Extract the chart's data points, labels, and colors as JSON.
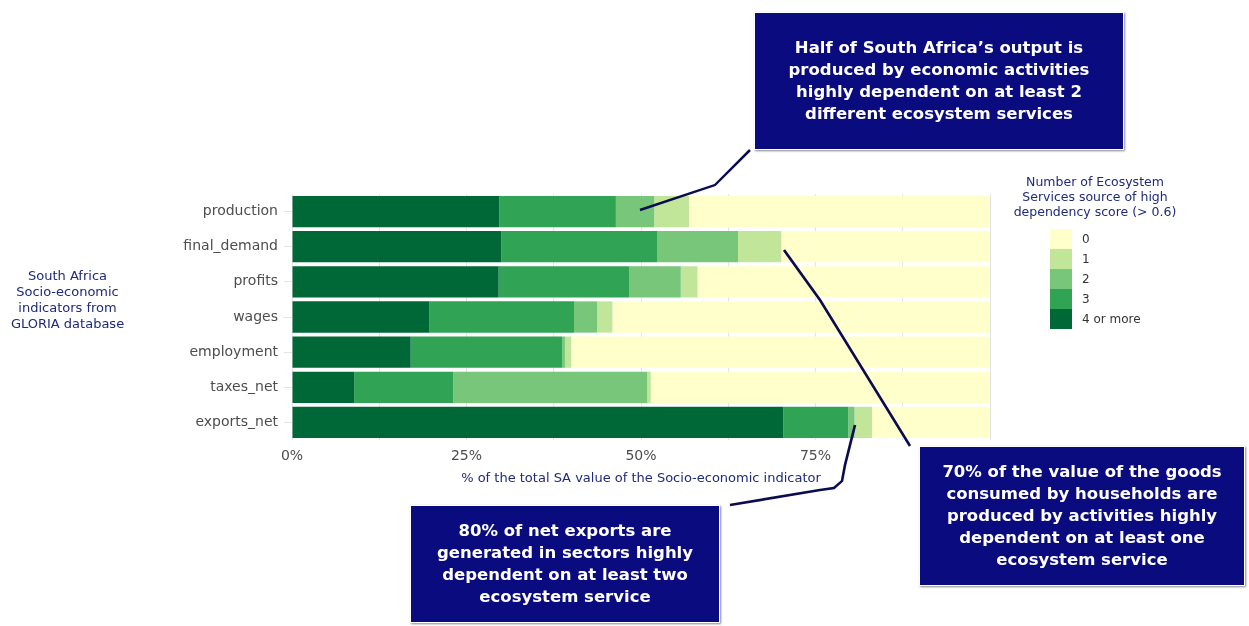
{
  "chart_data": {
    "type": "bar",
    "orientation": "horizontal",
    "stacked": true,
    "xlabel": "% of the total SA value of the Socio-economic indicator",
    "ylabel": "South Africa Socio-economic indicators from GLORIA database",
    "legend_title": "Number of Ecosystem Services source of high dependency score (> 0.6)",
    "categories": [
      "production",
      "final_demand",
      "profits",
      "wages",
      "employment",
      "taxes_net",
      "exports_net"
    ],
    "series": [
      {
        "name": "4 or more",
        "color": "#006837",
        "values": [
          29.7,
          30.0,
          29.6,
          19.7,
          17.0,
          8.9,
          70.4
        ]
      },
      {
        "name": "3",
        "color": "#31a354",
        "values": [
          16.7,
          22.3,
          18.7,
          20.7,
          21.7,
          14.2,
          9.3
        ]
      },
      {
        "name": "2",
        "color": "#78c679",
        "values": [
          5.5,
          11.6,
          7.4,
          3.3,
          0.4,
          27.8,
          0.9
        ]
      },
      {
        "name": "1",
        "color": "#c2e699",
        "values": [
          5.0,
          6.2,
          2.4,
          2.2,
          0.9,
          0.5,
          2.5
        ]
      },
      {
        "name": "0",
        "color": "#ffffcc",
        "values": [
          43.1,
          29.9,
          41.9,
          54.1,
          60.0,
          48.6,
          16.9
        ]
      }
    ],
    "xlim": [
      0,
      100
    ],
    "xticks": [
      {
        "value": 0,
        "label": "0%"
      },
      {
        "value": 25,
        "label": "25%"
      },
      {
        "value": 50,
        "label": "50%"
      },
      {
        "value": 75,
        "label": "75%"
      },
      {
        "value": 100,
        "label": null
      }
    ],
    "grid": true,
    "legend": "right",
    "annotations": [
      "Half of South Africa’s output is produced by economic activities highly dependent on at least 2 different ecosystem services",
      "70% of the value of the goods consumed by households are produced by activities highly dependent on at least one ecosystem service",
      "80% of net exports are generated in sectors highly dependent on at least two ecosystem service"
    ]
  }
}
